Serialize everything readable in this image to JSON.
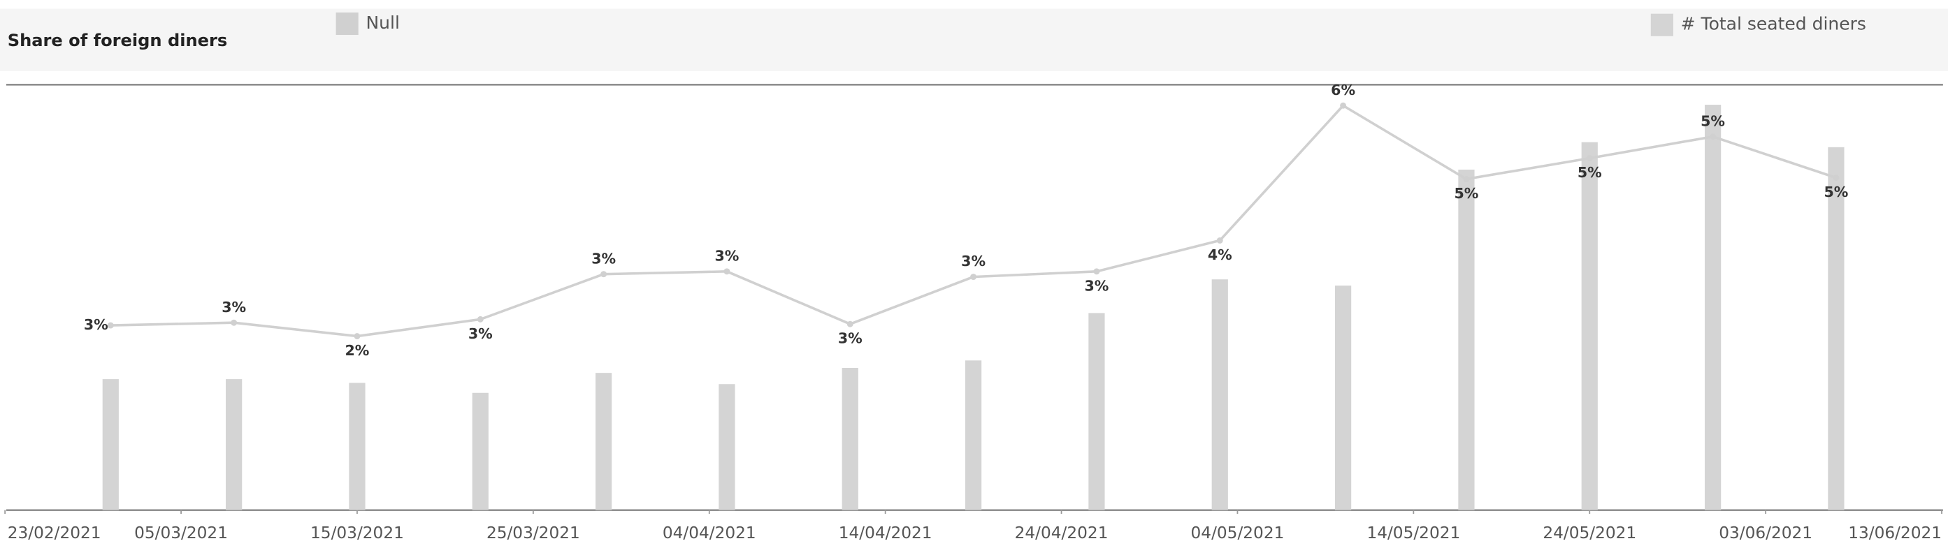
{
  "chart_data": {
    "type": "bar-line",
    "title": "Share of foreign diners",
    "x": [
      "01/03/2021",
      "08/03/2021",
      "15/03/2021",
      "22/03/2021",
      "29/03/2021",
      "05/04/2021",
      "12/04/2021",
      "19/04/2021",
      "26/04/2021",
      "03/05/2021",
      "10/05/2021",
      "17/05/2021",
      "24/05/2021",
      "31/05/2021",
      "07/06/2021"
    ],
    "xlim": [
      "23/02/2021",
      "13/06/2021"
    ],
    "xticks": [
      "23/02/2021",
      "05/03/2021",
      "15/03/2021",
      "25/03/2021",
      "04/04/2021",
      "14/04/2021",
      "24/04/2021",
      "04/05/2021",
      "14/05/2021",
      "24/05/2021",
      "03/06/2021",
      "13/06/2021"
    ],
    "ylim": [
      -0.1,
      6.19
    ],
    "y2lim": [
      0,
      340
    ],
    "series": [
      {
        "name": "# Total seated diners",
        "type": "bar",
        "axis": "y2",
        "color": "#d4d4d4",
        "values": [
          105,
          105,
          102,
          94,
          110,
          101,
          114,
          120,
          158,
          185,
          180,
          273,
          295,
          325,
          291
        ]
      },
      {
        "name": "Null",
        "type": "line",
        "color": "#d0d0d0",
        "values": [
          2.64,
          2.68,
          2.48,
          2.73,
          3.4,
          3.44,
          2.66,
          3.36,
          3.44,
          3.9,
          5.9,
          4.81,
          5.12,
          5.44,
          4.83
        ],
        "value_labels": [
          "3%",
          "3%",
          "2%",
          "3%",
          "3%",
          "3%",
          "3%",
          "3%",
          "3%",
          "4%",
          "6%",
          "5%",
          "5%",
          "5%",
          "5%"
        ]
      }
    ]
  }
}
